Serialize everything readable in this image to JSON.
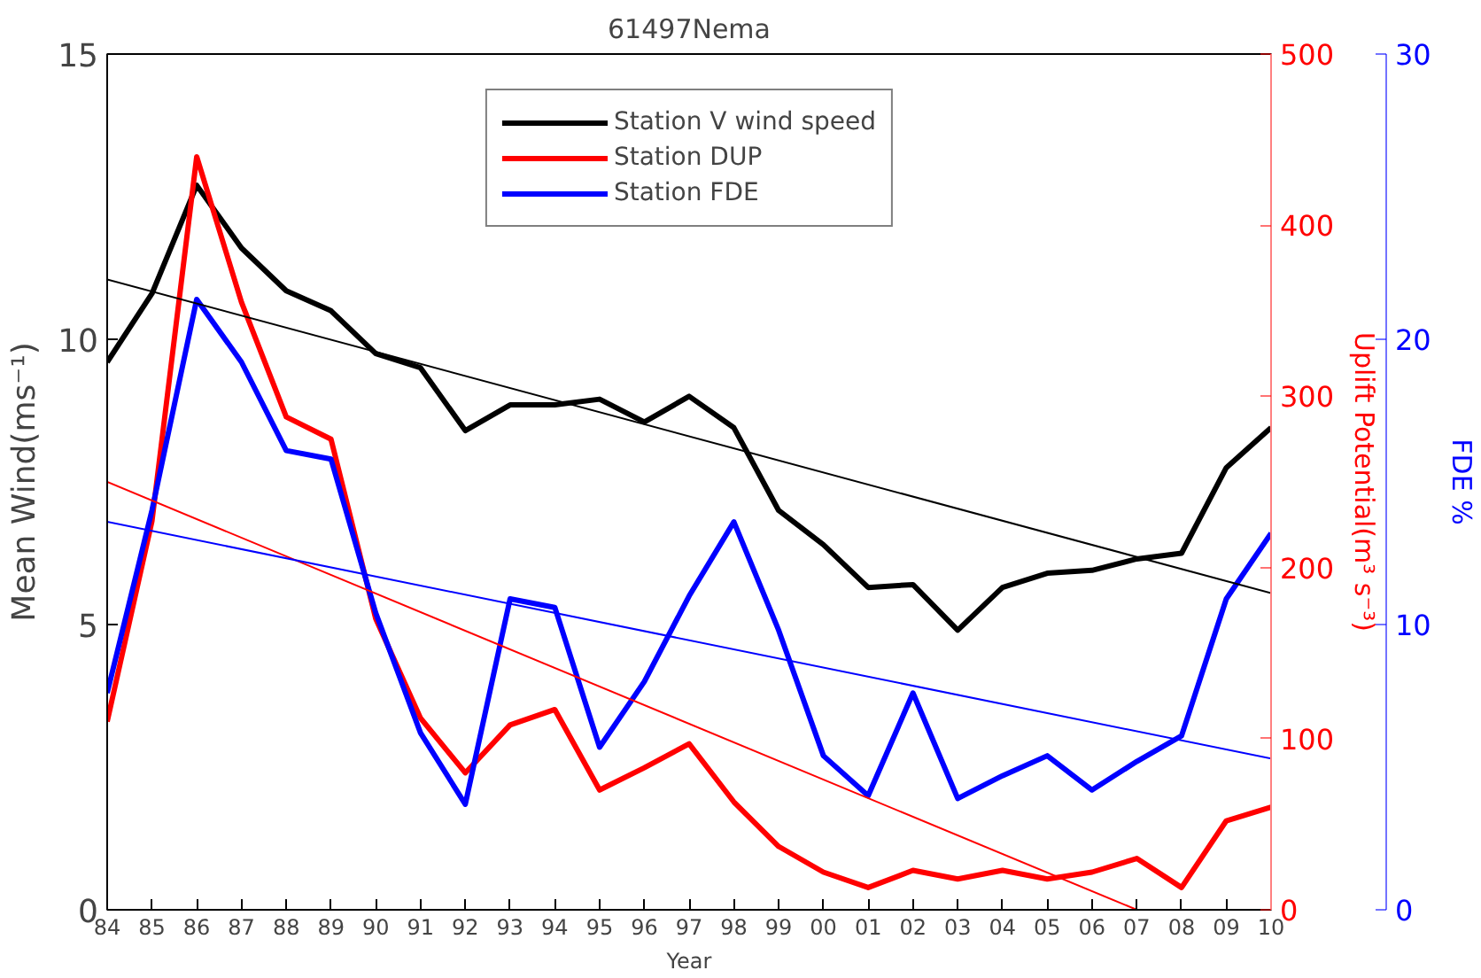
{
  "chart_data": {
    "type": "line",
    "title": "61497Nema",
    "xlabel": "Year",
    "ylabel": "Mean Wind(ms⁻¹)",
    "y2label": "Uplift Potential(m³ s⁻³)",
    "y3label": "FDE %",
    "categories": [
      "84",
      "85",
      "86",
      "87",
      "88",
      "89",
      "90",
      "91",
      "92",
      "93",
      "94",
      "95",
      "96",
      "97",
      "98",
      "99",
      "00",
      "01",
      "02",
      "03",
      "04",
      "05",
      "06",
      "07",
      "08",
      "09",
      "10"
    ],
    "ylim": [
      0,
      15
    ],
    "yticks": [
      0,
      5,
      10,
      15
    ],
    "y2lim": [
      0,
      500
    ],
    "y2ticks": [
      0,
      100,
      200,
      300,
      400,
      500
    ],
    "y3lim": [
      0,
      30
    ],
    "y3ticks": [
      0,
      10,
      20,
      30
    ],
    "grid": false,
    "legend": "top",
    "marker": "none",
    "line_style": "solid",
    "series": [
      {
        "name": "Station V wind speed",
        "color": "#000000",
        "values": [
          9.6,
          10.8,
          12.7,
          11.6,
          10.85,
          10.5,
          9.75,
          9.5,
          8.4,
          8.85,
          8.85,
          8.95,
          8.55,
          9.0,
          8.45,
          7.0,
          6.4,
          5.65,
          5.7,
          4.9,
          5.65,
          5.9,
          5.95,
          6.15,
          6.25,
          7.75,
          8.45
        ]
      },
      {
        "name": "Station DUP",
        "color": "#ff0000",
        "axis": "y2",
        "values": [
          110,
          227,
          440,
          355,
          288,
          275,
          170,
          112,
          80,
          108,
          117,
          70,
          83,
          97,
          63,
          37,
          22,
          13,
          23,
          18,
          23,
          18,
          22,
          30,
          13,
          52,
          60
        ]
      },
      {
        "name": "Station FDE",
        "color": "#0000ff",
        "axis": "y3",
        "values": [
          7.6,
          14,
          21.4,
          19.2,
          16.1,
          15.8,
          10.4,
          6.2,
          3.7,
          10.9,
          10.6,
          5.7,
          8,
          11,
          13.6,
          9.8,
          5.4,
          4.0,
          7.6,
          3.9,
          4.7,
          5.4,
          4.2,
          5.2,
          6.1,
          10.9,
          13.2
        ]
      },
      {
        "type": "line",
        "color": "#000000",
        "x": [
          "84",
          "10"
        ],
        "values": [
          11.05,
          5.55
        ]
      },
      {
        "type": "line",
        "color": "#ff0000",
        "axis": "y2",
        "x": [
          "84",
          "07"
        ],
        "values": [
          250,
          0
        ]
      },
      {
        "type": "line",
        "color": "#0000ff",
        "axis": "y3",
        "x": [
          "84",
          "10"
        ],
        "values": [
          13.6,
          5.3
        ]
      }
    ]
  }
}
